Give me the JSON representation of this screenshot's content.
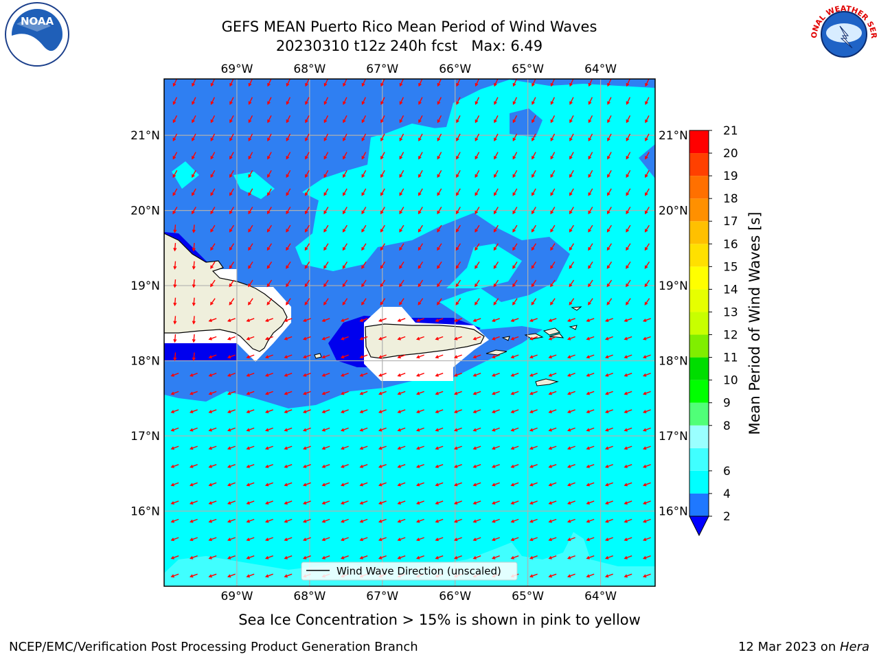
{
  "title": {
    "line1": "GEFS MEAN Puerto Rico Mean Period of Wind Waves",
    "line2": "20230310 t12z 240h fcst   Max: 6.49"
  },
  "footer": {
    "left": "NCEP/EMC/Verification Post Processing Product Generation Branch",
    "date": "12 Mar 2023 on ",
    "host": "Hera"
  },
  "note": "Sea Ice Concentration > 15% is shown in pink to yellow",
  "legend": {
    "label": "Wind Wave Direction (unscaled)"
  },
  "logos": {
    "noaa": "NOAA",
    "nws": "NATIONAL WEATHER SERVICE"
  },
  "chart_data": {
    "type": "heatmap",
    "title": "GEFS MEAN Puerto Rico Mean Period of Wind Waves",
    "xlim": [
      -70,
      -63.25
    ],
    "ylim": [
      15,
      21.75
    ],
    "x_ticks": [
      {
        "lon": -69,
        "label": "69°W"
      },
      {
        "lon": -68,
        "label": "68°W"
      },
      {
        "lon": -67,
        "label": "67°W"
      },
      {
        "lon": -66,
        "label": "66°W"
      },
      {
        "lon": -65,
        "label": "65°W"
      },
      {
        "lon": -64,
        "label": "64°W"
      }
    ],
    "y_ticks": [
      {
        "lat": 21,
        "label": "21°N"
      },
      {
        "lat": 20,
        "label": "20°N"
      },
      {
        "lat": 19,
        "label": "19°N"
      },
      {
        "lat": 18,
        "label": "18°N"
      },
      {
        "lat": 17,
        "label": "17°N"
      },
      {
        "lat": 16,
        "label": "16°N"
      }
    ],
    "grid": true,
    "max_value": 6.49,
    "colorbar": {
      "label": "Mean Period of Wind Waves [s]",
      "levels": [
        2,
        4,
        6,
        7,
        8,
        9,
        10,
        11,
        12,
        13,
        14,
        15,
        16,
        17,
        18,
        19,
        20,
        21
      ],
      "tick_labels": [
        "2",
        "4",
        "6",
        "8",
        "9",
        "10",
        "11",
        "12",
        "13",
        "14",
        "15",
        "16",
        "17",
        "18",
        "19",
        "20",
        "21"
      ],
      "colors": [
        "#1f78ff",
        "#00ffff",
        "#40ffff",
        "#9affff",
        "#50ff78",
        "#00ff00",
        "#00dd00",
        "#80ee00",
        "#c8ff00",
        "#e6ff00",
        "#ffff00",
        "#ffe000",
        "#ffc000",
        "#ff9000",
        "#ff7000",
        "#ff4000",
        "#ff0000"
      ],
      "under_color": "#0000ff",
      "extend": "min"
    },
    "field_colors": {
      "band_2_4": "#2f7ff2",
      "band_4_6": "#00ffff",
      "band_6_8": "#40ffff",
      "under": "#0000ee",
      "land": "#efefdc",
      "masked": "#ffffff"
    },
    "arrow_color": "#ff0000",
    "legend_position": "bottom-center"
  }
}
